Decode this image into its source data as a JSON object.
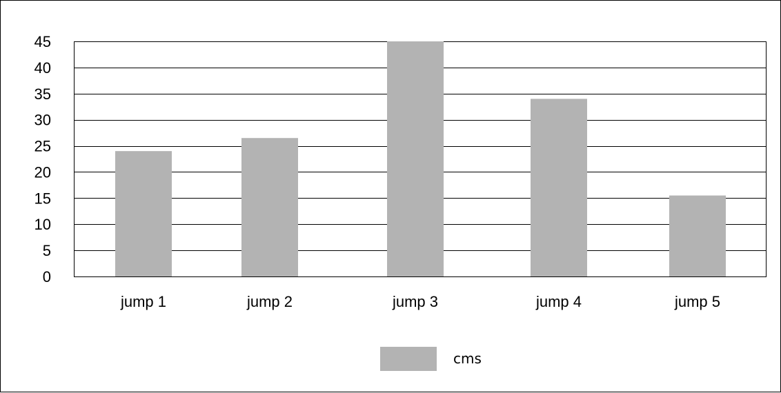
{
  "chart_data": {
    "type": "bar",
    "categories": [
      "jump 1",
      "jump 2",
      "jump 3",
      "jump 4",
      "jump 5"
    ],
    "series": [
      {
        "name": "cms",
        "values": [
          24,
          26.5,
          45,
          34,
          15.5
        ]
      }
    ],
    "title": "",
    "xlabel": "",
    "ylabel": "",
    "ylim": [
      0,
      45
    ],
    "yticks": [
      "0",
      "5",
      "10",
      "15",
      "20",
      "25",
      "30",
      "35",
      "40",
      "45"
    ],
    "grid": true,
    "legend_position": "bottom",
    "colors": {
      "bar": "#b3b3b3",
      "grid": "#000000",
      "text": "#000000"
    }
  }
}
